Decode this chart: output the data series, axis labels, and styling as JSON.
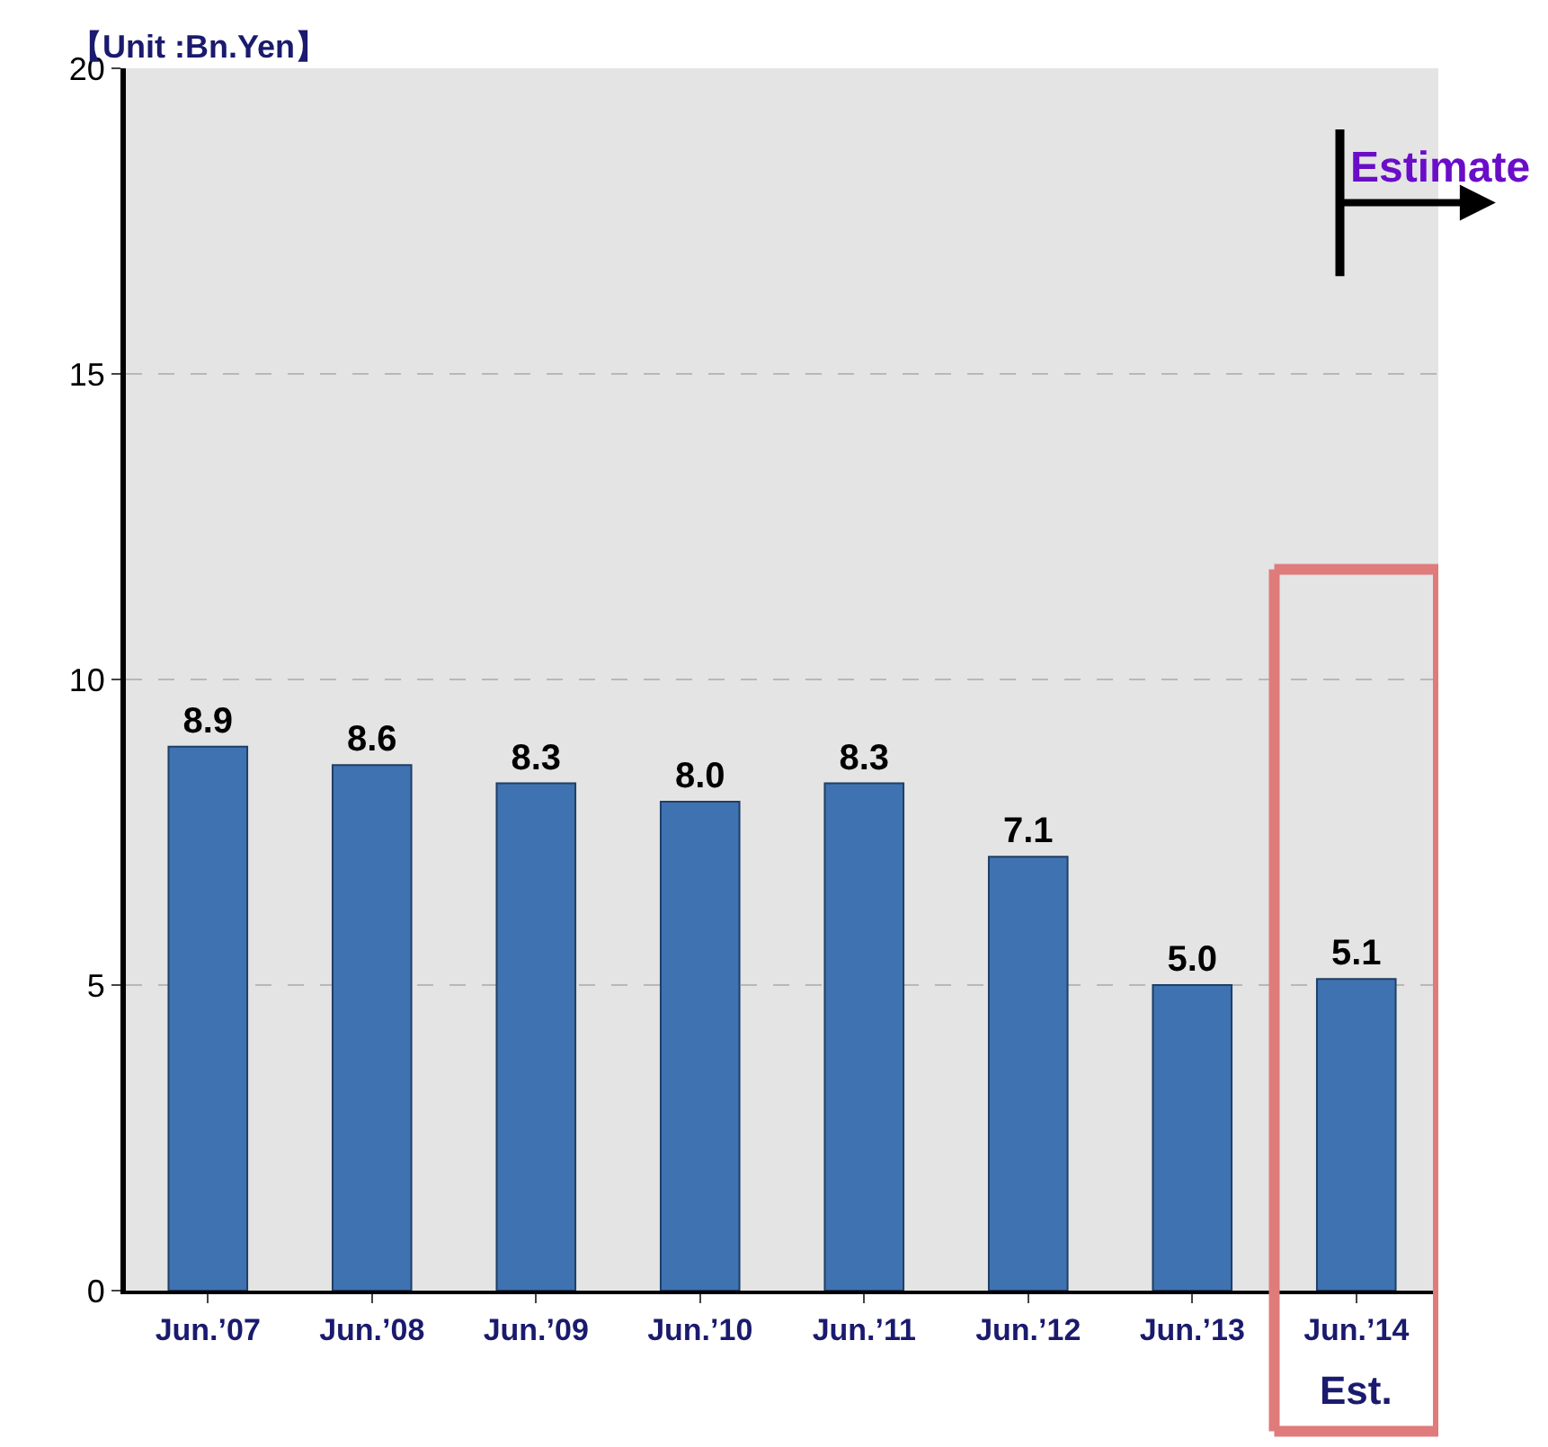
{
  "chart_data": {
    "type": "bar",
    "ylabel": "【Unit :Bn.Yen】",
    "categories": [
      "Jun.’07",
      "Jun.’08",
      "Jun.’09",
      "Jun.’10",
      "Jun.’11",
      "Jun.’12",
      "Jun.’13",
      "Jun.’14"
    ],
    "values": [
      8.9,
      8.6,
      8.3,
      8.0,
      8.3,
      7.1,
      5.0,
      5.1
    ],
    "value_labels": [
      "8.9",
      "8.6",
      "8.3",
      "8.0",
      "8.3",
      "7.1",
      "5.0",
      "5.1"
    ],
    "color": "#3f72b0",
    "ylim": [
      0,
      20
    ],
    "yticks": [
      0,
      5,
      10,
      15,
      20
    ],
    "grid": "y",
    "annotations": [
      "Estimate",
      "Est."
    ]
  }
}
